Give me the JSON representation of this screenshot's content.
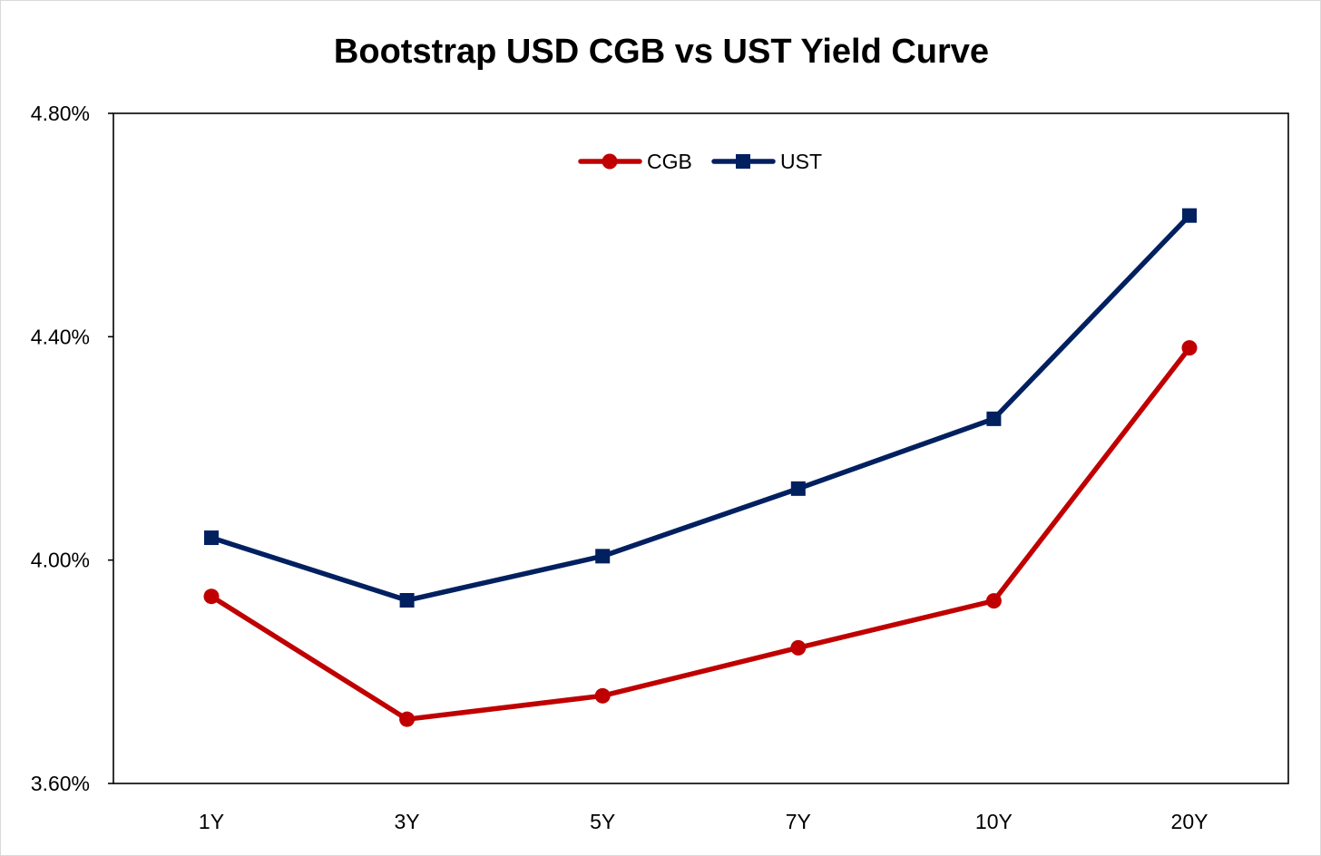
{
  "chart_data": {
    "type": "line",
    "title": "Bootstrap USD CGB vs UST Yield Curve",
    "xlabel": "",
    "ylabel": "",
    "categories": [
      "1Y",
      "3Y",
      "5Y",
      "7Y",
      "10Y",
      "20Y"
    ],
    "ylim": [
      3.6,
      4.8
    ],
    "yticks": [
      3.6,
      4.0,
      4.4,
      4.8
    ],
    "ytick_labels": [
      "3.60%",
      "4.00%",
      "4.40%",
      "4.80%"
    ],
    "grid": false,
    "legend_position": "top-center",
    "series": [
      {
        "name": "CGB",
        "marker": "circle",
        "color": "#c00000",
        "values": [
          3.935,
          3.715,
          3.757,
          3.843,
          3.927,
          4.38
        ]
      },
      {
        "name": "UST",
        "marker": "square",
        "color": "#002060",
        "values": [
          4.04,
          3.928,
          4.007,
          4.128,
          4.253,
          4.617
        ]
      }
    ]
  }
}
